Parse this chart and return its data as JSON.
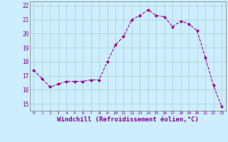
{
  "x": [
    0,
    1,
    2,
    3,
    4,
    5,
    6,
    7,
    8,
    9,
    10,
    11,
    12,
    13,
    14,
    15,
    16,
    17,
    18,
    19,
    20,
    21,
    22,
    23
  ],
  "y": [
    17.4,
    16.8,
    16.2,
    16.4,
    16.6,
    16.6,
    16.6,
    16.7,
    16.7,
    18.0,
    19.2,
    19.8,
    21.0,
    21.3,
    21.7,
    21.3,
    21.2,
    20.5,
    20.9,
    20.7,
    20.2,
    18.3,
    16.3,
    14.8
  ],
  "line_color": "#990099",
  "marker": "D",
  "marker_size": 2,
  "bg_color": "#cceeff",
  "grid_color": "#aacccc",
  "xlabel": "Windchill (Refroidissement éolien,°C)",
  "xlabel_fontsize": 6.5,
  "tick_color": "#880088",
  "yticks": [
    15,
    16,
    17,
    18,
    19,
    20,
    21,
    22
  ],
  "xticks": [
    0,
    1,
    2,
    3,
    4,
    5,
    6,
    7,
    8,
    9,
    10,
    11,
    12,
    13,
    14,
    15,
    16,
    17,
    18,
    19,
    20,
    21,
    22,
    23
  ],
  "ylim": [
    14.5,
    22.3
  ],
  "xlim": [
    -0.5,
    23.5
  ]
}
